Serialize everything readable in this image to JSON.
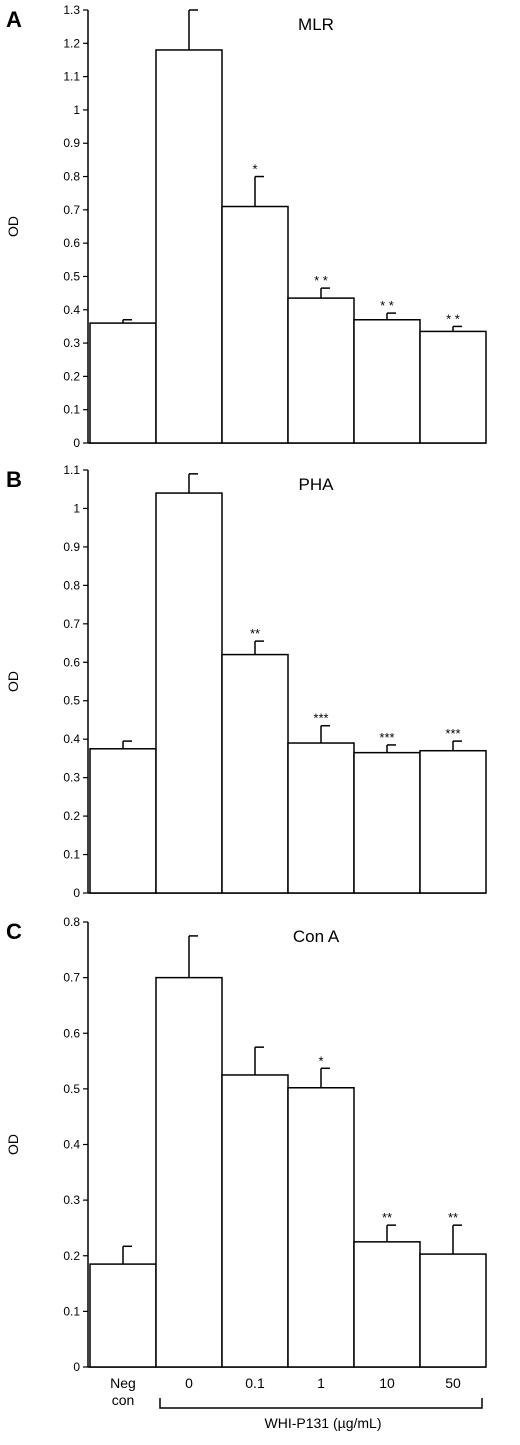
{
  "figure": {
    "xaxis_label": "WHI-P131 (µg/mL)",
    "categories": [
      [
        "Neg",
        "con"
      ],
      [
        "0"
      ],
      [
        "0.1"
      ],
      [
        "1"
      ],
      [
        "10"
      ],
      [
        "50"
      ]
    ],
    "colors": {
      "bar_fill": "#ffffff",
      "bar_stroke": "#000000",
      "axis": "#000000"
    }
  },
  "chart_data": [
    {
      "type": "bar",
      "panel_letter": "A",
      "title": "MLR",
      "ylabel": "OD",
      "ylim": [
        0,
        1.3
      ],
      "yticks": [
        "0",
        "0.1",
        "0.2",
        "0.3",
        "0.4",
        "0.5",
        "0.6",
        "0.7",
        "0.8",
        "0.9",
        "1",
        "1.1",
        "1.2",
        "1.3"
      ],
      "values": [
        0.36,
        1.18,
        0.71,
        0.435,
        0.37,
        0.335
      ],
      "errors": [
        0.01,
        0.12,
        0.09,
        0.03,
        0.02,
        0.015
      ],
      "significance": [
        "",
        "",
        "*",
        "* *",
        "* *",
        "* *"
      ]
    },
    {
      "type": "bar",
      "panel_letter": "B",
      "title": "PHA",
      "ylabel": "OD",
      "ylim": [
        0,
        1.1
      ],
      "yticks": [
        "0",
        "0.1",
        "0.2",
        "0.3",
        "0.4",
        "0.5",
        "0.6",
        "0.7",
        "0.8",
        "0.9",
        "1",
        "1.1"
      ],
      "values": [
        0.375,
        1.04,
        0.62,
        0.39,
        0.365,
        0.37
      ],
      "errors": [
        0.02,
        0.05,
        0.035,
        0.045,
        0.02,
        0.025
      ],
      "significance": [
        "",
        "",
        "**",
        "***",
        "***",
        "***"
      ]
    },
    {
      "type": "bar",
      "panel_letter": "C",
      "title": "Con A",
      "ylabel": "OD",
      "ylim": [
        0,
        0.8
      ],
      "yticks": [
        "0",
        "0.1",
        "0.2",
        "0.3",
        "0.4",
        "0.5",
        "0.6",
        "0.7",
        "0.8"
      ],
      "values": [
        0.185,
        0.7,
        0.525,
        0.502,
        0.225,
        0.203
      ],
      "errors": [
        0.032,
        0.075,
        0.05,
        0.035,
        0.03,
        0.052
      ],
      "significance": [
        "",
        "",
        "",
        "*",
        "**",
        "**"
      ]
    }
  ]
}
